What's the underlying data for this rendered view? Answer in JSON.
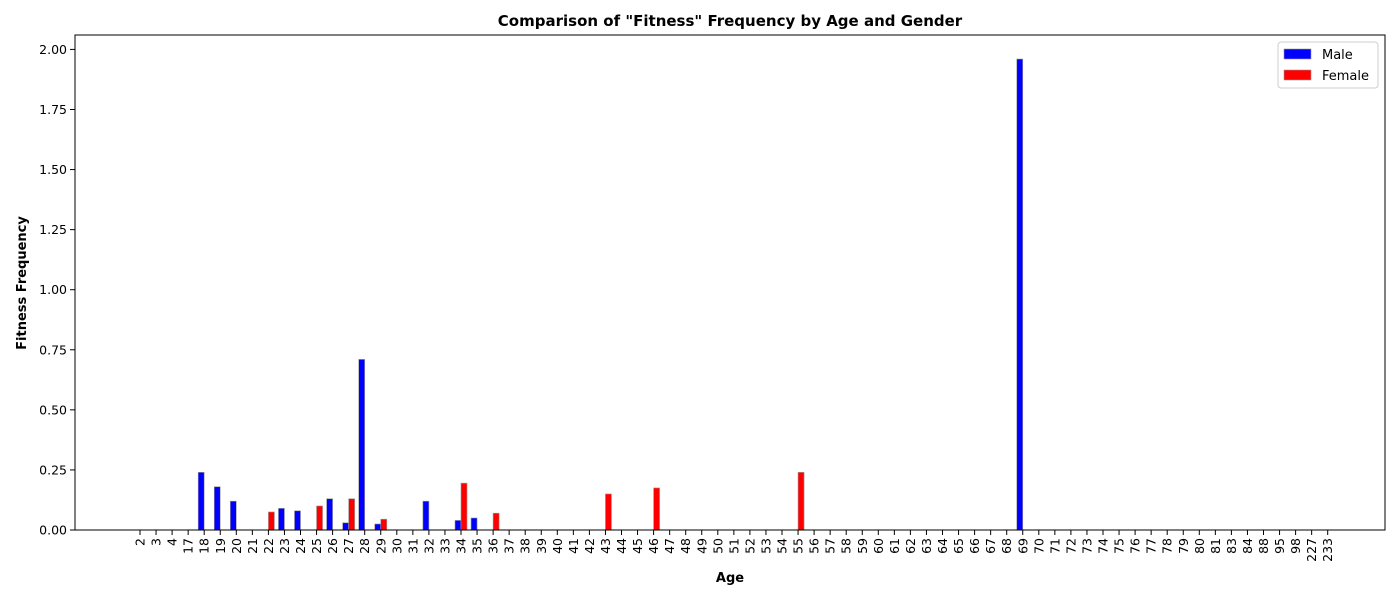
{
  "chart_data": {
    "type": "bar",
    "title": "Comparison of \"Fitness\" Frequency by Age and Gender",
    "xlabel": "Age",
    "ylabel": "Fitness Frequency",
    "ylim": [
      0,
      2.06
    ],
    "yticks": [
      "0.00",
      "0.25",
      "0.50",
      "0.75",
      "1.00",
      "1.25",
      "1.50",
      "1.75",
      "2.00"
    ],
    "ytick_values": [
      0,
      0.25,
      0.5,
      0.75,
      1.0,
      1.25,
      1.5,
      1.75,
      2.0
    ],
    "legend_position": "top-right",
    "grid": false,
    "categories": [
      "2",
      "3",
      "4",
      "17",
      "18",
      "19",
      "20",
      "21",
      "22",
      "23",
      "24",
      "25",
      "26",
      "27",
      "28",
      "29",
      "30",
      "31",
      "32",
      "33",
      "34",
      "35",
      "36",
      "37",
      "38",
      "39",
      "40",
      "41",
      "42",
      "43",
      "44",
      "45",
      "46",
      "47",
      "48",
      "49",
      "50",
      "51",
      "52",
      "53",
      "54",
      "55",
      "56",
      "57",
      "58",
      "59",
      "60",
      "61",
      "62",
      "63",
      "64",
      "65",
      "66",
      "67",
      "68",
      "69",
      "70",
      "71",
      "72",
      "73",
      "74",
      "75",
      "76",
      "77",
      "78",
      "79",
      "80",
      "81",
      "83",
      "84",
      "88",
      "95",
      "98",
      "227",
      "233"
    ],
    "series": [
      {
        "name": "Male",
        "color": "#0000ff",
        "values": [
          0,
          0,
          0,
          0,
          0.24,
          0.18,
          0.12,
          0,
          0,
          0.09,
          0.08,
          0,
          0.13,
          0.03,
          0.71,
          0.025,
          0,
          0,
          0.12,
          0,
          0.04,
          0.05,
          0,
          0,
          0,
          0,
          0,
          0,
          0,
          0,
          0,
          0,
          0,
          0,
          0,
          0,
          0,
          0,
          0,
          0,
          0,
          0,
          0,
          0,
          0,
          0,
          0,
          0,
          0,
          0,
          0,
          0,
          0,
          0,
          0,
          1.96,
          0,
          0,
          0,
          0,
          0,
          0,
          0,
          0,
          0,
          0,
          0,
          0,
          0,
          0,
          0,
          0,
          0,
          0,
          0
        ]
      },
      {
        "name": "Female",
        "color": "#ff0000",
        "values": [
          0,
          0,
          0,
          0,
          0,
          0,
          0,
          0,
          0.075,
          0,
          0,
          0.1,
          0,
          0.13,
          0,
          0.045,
          0,
          0,
          0,
          0,
          0.195,
          0,
          0.07,
          0,
          0,
          0,
          0,
          0,
          0,
          0.15,
          0,
          0,
          0.175,
          0,
          0,
          0,
          0,
          0,
          0,
          0,
          0,
          0.24,
          0,
          0,
          0,
          0,
          0,
          0,
          0,
          0,
          0,
          0,
          0,
          0,
          0,
          0,
          0,
          0,
          0,
          0,
          0,
          0,
          0,
          0,
          0,
          0,
          0,
          0,
          0,
          0,
          0,
          0,
          0,
          0,
          0
        ]
      }
    ]
  }
}
